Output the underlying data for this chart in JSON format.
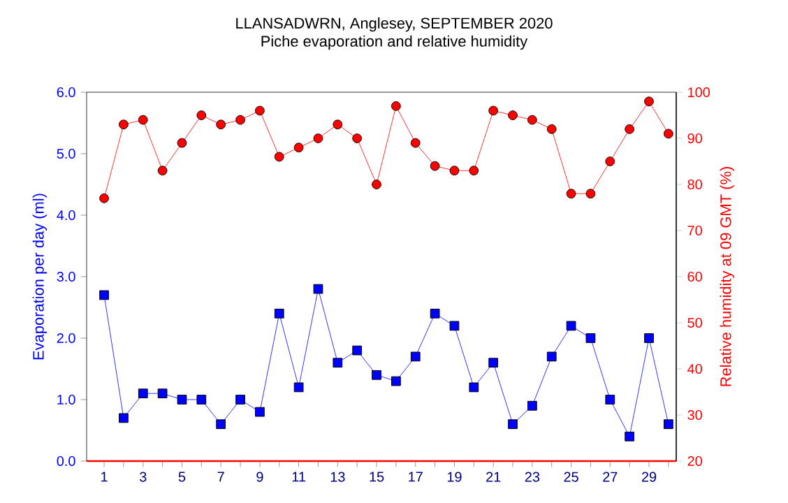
{
  "chart_data": {
    "type": "line",
    "title": "LLANSADWRN, Anglesey, SEPTEMBER 2020",
    "subtitle": "Piche evaporation and relative humidity",
    "ylabel": "Evaporation per day (ml)",
    "y2label": "Relative humidity at 09 GMT (%)",
    "x": [
      1,
      2,
      3,
      4,
      5,
      6,
      7,
      8,
      9,
      10,
      11,
      12,
      13,
      14,
      15,
      16,
      17,
      18,
      19,
      20,
      21,
      22,
      23,
      24,
      25,
      26,
      27,
      28,
      29,
      30
    ],
    "series": [
      {
        "color": "#0000ff",
        "marker": "square",
        "values": [
          2.7,
          0.7,
          1.1,
          1.1,
          1.0,
          1.0,
          0.6,
          1.0,
          0.8,
          2.4,
          1.2,
          2.8,
          1.6,
          1.8,
          1.4,
          1.3,
          1.7,
          2.4,
          2.2,
          1.2,
          1.6,
          0.6,
          0.9,
          1.7,
          2.2,
          2.0,
          1.0,
          0.4,
          2.0,
          0.6
        ]
      },
      {
        "color": "#ff0000",
        "marker": "circle",
        "axis": "y2",
        "values": [
          77,
          93,
          94,
          83,
          89,
          95,
          93,
          94,
          96,
          86,
          88,
          90,
          93,
          90,
          80,
          97,
          89,
          84,
          83,
          83,
          96,
          95,
          94,
          92,
          78,
          78,
          85,
          92,
          98,
          91
        ]
      }
    ],
    "xlim": [
      0.1,
      30.4
    ],
    "xticks": [
      1,
      {
        "value": 2,
        "label": null
      },
      3,
      {
        "value": 4,
        "label": null
      },
      5,
      {
        "value": 6,
        "label": null
      },
      7,
      {
        "value": 8,
        "label": null
      },
      9,
      {
        "value": 10,
        "label": null
      },
      11,
      {
        "value": 12,
        "label": null
      },
      13,
      {
        "value": 14,
        "label": null
      },
      15,
      {
        "value": 16,
        "label": null
      },
      17,
      {
        "value": 18,
        "label": null
      },
      19,
      {
        "value": 20,
        "label": null
      },
      21,
      {
        "value": 22,
        "label": null
      },
      23,
      {
        "value": 24,
        "label": null
      },
      25,
      {
        "value": 26,
        "label": null
      },
      27,
      {
        "value": 28,
        "label": null
      },
      29,
      {
        "value": 30,
        "label": null
      }
    ],
    "ylim": [
      0,
      6
    ],
    "yticks": [
      {
        "value": 0,
        "label": "0.0"
      },
      {
        "value": 1,
        "label": "1.0"
      },
      {
        "value": 2,
        "label": "2.0"
      },
      {
        "value": 3,
        "label": "3.0"
      },
      {
        "value": 4,
        "label": "4.0"
      },
      {
        "value": 5,
        "label": "5.0"
      },
      {
        "value": 6,
        "label": "6.0"
      }
    ],
    "y2lim": [
      20,
      100
    ],
    "y2ticks": [
      20,
      30,
      40,
      50,
      60,
      70,
      80,
      90,
      100
    ]
  }
}
